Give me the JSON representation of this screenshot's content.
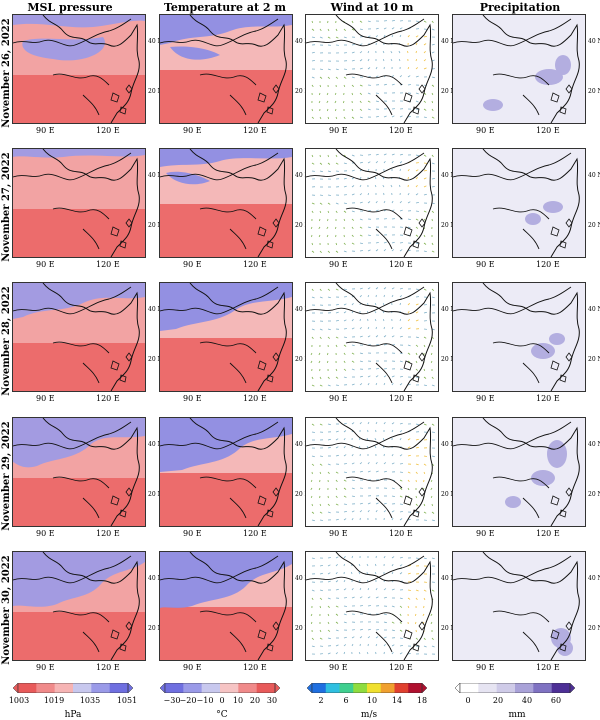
{
  "columns": [
    {
      "title": "MSL pressure"
    },
    {
      "title": "Temperature at 2 m"
    },
    {
      "title": "Wind at 10 m"
    },
    {
      "title": "Precipitation"
    }
  ],
  "rows": [
    {
      "date": "November 26, 2022"
    },
    {
      "date": "November 27, 2022"
    },
    {
      "date": "November 28, 2022"
    },
    {
      "date": "November 29, 2022"
    },
    {
      "date": "November 30, 2022"
    }
  ],
  "lat_labels": [
    "40 N",
    "20 N"
  ],
  "lon_labels": [
    "90 E",
    "120 E"
  ],
  "colorbars": [
    {
      "ticks": [
        "1003",
        "1019",
        "1035",
        "1051"
      ],
      "unit": "hPa",
      "colors": [
        "#e85a5a",
        "#f08a8a",
        "#f6b4b4",
        "#c8c8ee",
        "#9a9ae8",
        "#6f6fe0"
      ]
    },
    {
      "ticks": [
        "−30",
        "−20",
        "−10",
        "0",
        "10",
        "20",
        "30"
      ],
      "unit": "°C",
      "colors": [
        "#6f6fe0",
        "#9a9ae8",
        "#c8c8ee",
        "#f6c4c4",
        "#f08a8a",
        "#e85a5a"
      ]
    },
    {
      "ticks": [
        "2",
        "6",
        "10",
        "14",
        "18"
      ],
      "unit": "m/s",
      "colors": [
        "#1f6fe0",
        "#2fbfe0",
        "#3fcf8f",
        "#8fdc3f",
        "#f0e02f",
        "#f0a02f",
        "#e0402f",
        "#b0102f"
      ]
    },
    {
      "ticks": [
        "0",
        "20",
        "40",
        "60"
      ],
      "unit": "mm",
      "colors": [
        "#ffffff",
        "#e6e4f2",
        "#cfcbe8",
        "#a9a2d8",
        "#7f72c2",
        "#4d2f96"
      ]
    }
  ],
  "map_colors": {
    "pressure_high": "#9a9ae8",
    "pressure_low": "#ec6c6c",
    "precip_bg": "#ecebf6",
    "precip_cell": "#b3aee0",
    "wind_arrow": "#7fb04f",
    "wind_strong": "#f0c040"
  }
}
